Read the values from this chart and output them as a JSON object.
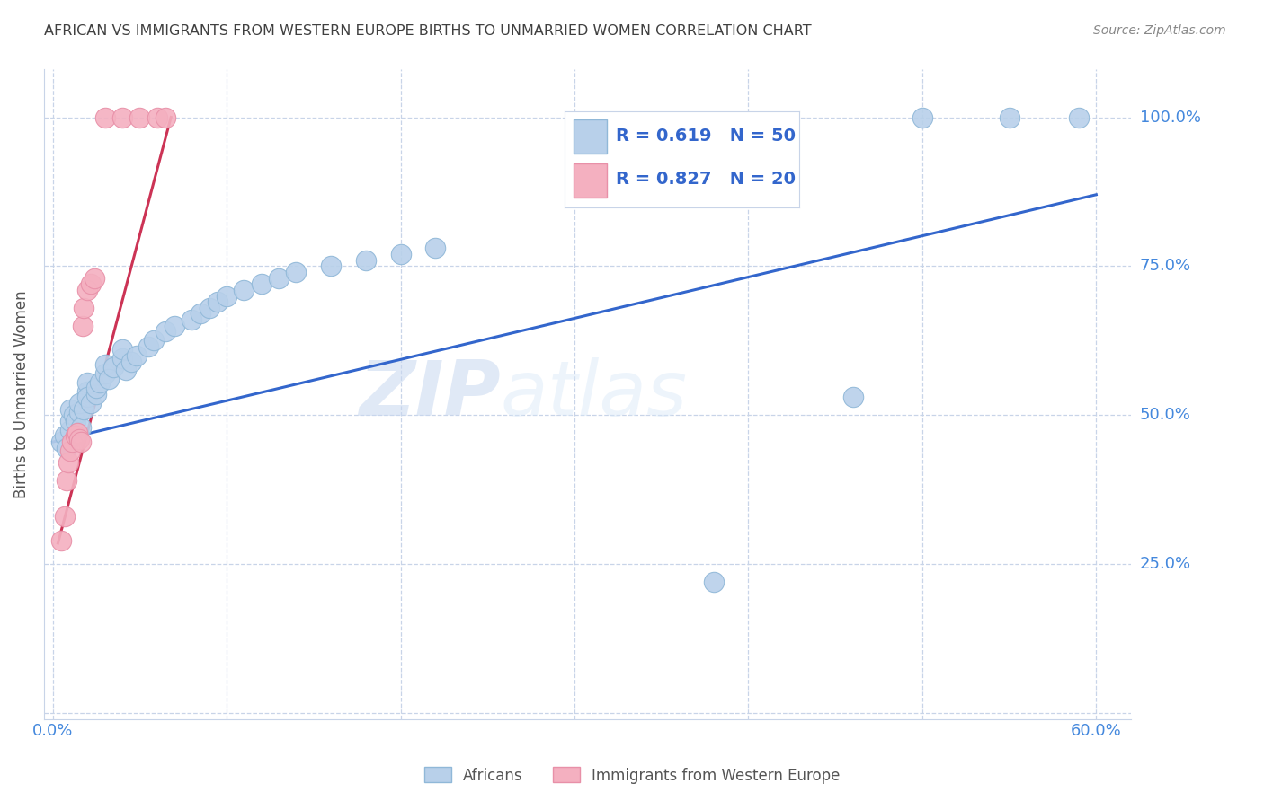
{
  "title": "AFRICAN VS IMMIGRANTS FROM WESTERN EUROPE BIRTHS TO UNMARRIED WOMEN CORRELATION CHART",
  "source": "Source: ZipAtlas.com",
  "ylabel": "Births to Unmarried Women",
  "x_ticks": [
    0.0,
    0.1,
    0.2,
    0.3,
    0.4,
    0.5,
    0.6
  ],
  "y_ticks": [
    0.0,
    0.25,
    0.5,
    0.75,
    1.0
  ],
  "xlim": [
    -0.005,
    0.62
  ],
  "ylim": [
    -0.01,
    1.08
  ],
  "blue_R": 0.619,
  "blue_N": 50,
  "pink_R": 0.827,
  "pink_N": 20,
  "blue_color": "#b8d0ea",
  "pink_color": "#f4b0c0",
  "blue_edge_color": "#90b8d8",
  "pink_edge_color": "#e890a8",
  "blue_line_color": "#3366cc",
  "pink_line_color": "#cc3355",
  "blue_dots": [
    [
      0.005,
      0.455
    ],
    [
      0.007,
      0.465
    ],
    [
      0.008,
      0.445
    ],
    [
      0.01,
      0.475
    ],
    [
      0.01,
      0.49
    ],
    [
      0.01,
      0.51
    ],
    [
      0.012,
      0.5
    ],
    [
      0.013,
      0.49
    ],
    [
      0.015,
      0.505
    ],
    [
      0.015,
      0.52
    ],
    [
      0.016,
      0.48
    ],
    [
      0.018,
      0.51
    ],
    [
      0.02,
      0.54
    ],
    [
      0.02,
      0.555
    ],
    [
      0.02,
      0.53
    ],
    [
      0.022,
      0.52
    ],
    [
      0.025,
      0.535
    ],
    [
      0.025,
      0.545
    ],
    [
      0.027,
      0.555
    ],
    [
      0.03,
      0.57
    ],
    [
      0.03,
      0.585
    ],
    [
      0.032,
      0.56
    ],
    [
      0.035,
      0.58
    ],
    [
      0.04,
      0.595
    ],
    [
      0.04,
      0.61
    ],
    [
      0.042,
      0.575
    ],
    [
      0.045,
      0.59
    ],
    [
      0.048,
      0.6
    ],
    [
      0.055,
      0.615
    ],
    [
      0.058,
      0.625
    ],
    [
      0.065,
      0.64
    ],
    [
      0.07,
      0.65
    ],
    [
      0.08,
      0.66
    ],
    [
      0.085,
      0.67
    ],
    [
      0.09,
      0.68
    ],
    [
      0.095,
      0.69
    ],
    [
      0.1,
      0.7
    ],
    [
      0.11,
      0.71
    ],
    [
      0.12,
      0.72
    ],
    [
      0.13,
      0.73
    ],
    [
      0.14,
      0.74
    ],
    [
      0.16,
      0.75
    ],
    [
      0.18,
      0.76
    ],
    [
      0.2,
      0.77
    ],
    [
      0.22,
      0.78
    ],
    [
      0.38,
      0.22
    ],
    [
      0.46,
      0.53
    ],
    [
      0.5,
      1.0
    ],
    [
      0.55,
      1.0
    ],
    [
      0.59,
      1.0
    ]
  ],
  "pink_dots": [
    [
      0.005,
      0.29
    ],
    [
      0.007,
      0.33
    ],
    [
      0.008,
      0.39
    ],
    [
      0.009,
      0.42
    ],
    [
      0.01,
      0.44
    ],
    [
      0.011,
      0.455
    ],
    [
      0.013,
      0.465
    ],
    [
      0.014,
      0.47
    ],
    [
      0.015,
      0.46
    ],
    [
      0.016,
      0.455
    ],
    [
      0.017,
      0.65
    ],
    [
      0.018,
      0.68
    ],
    [
      0.02,
      0.71
    ],
    [
      0.022,
      0.72
    ],
    [
      0.024,
      0.73
    ],
    [
      0.03,
      1.0
    ],
    [
      0.04,
      1.0
    ],
    [
      0.05,
      1.0
    ],
    [
      0.06,
      1.0
    ],
    [
      0.065,
      1.0
    ]
  ],
  "blue_line": [
    [
      0.0,
      0.455
    ],
    [
      0.6,
      0.87
    ]
  ],
  "pink_line": [
    [
      0.003,
      0.285
    ],
    [
      0.068,
      1.0
    ]
  ],
  "watermark_zip": "ZIP",
  "watermark_atlas": "atlas",
  "legend_blue_label": "Africans",
  "legend_pink_label": "Immigrants from Western Europe",
  "background_color": "#ffffff",
  "grid_color": "#c8d4e8",
  "title_color": "#404040",
  "tick_color": "#4488dd",
  "ylabel_color": "#555555"
}
